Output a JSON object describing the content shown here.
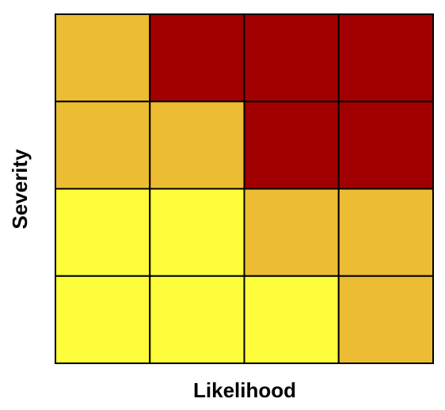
{
  "x_label": "Likelihood",
  "y_label": "Severity",
  "cells": [
    [
      "#ECBC33",
      "#A20000",
      "#A20000",
      "#A20000"
    ],
    [
      "#ECBC33",
      "#ECBC33",
      "#A20000",
      "#A20000"
    ],
    [
      "#FDFD3C",
      "#FDFD3C",
      "#ECBC33",
      "#ECBC33"
    ],
    [
      "#FDFD3C",
      "#FDFD3C",
      "#FDFD3C",
      "#ECBC33"
    ]
  ]
}
